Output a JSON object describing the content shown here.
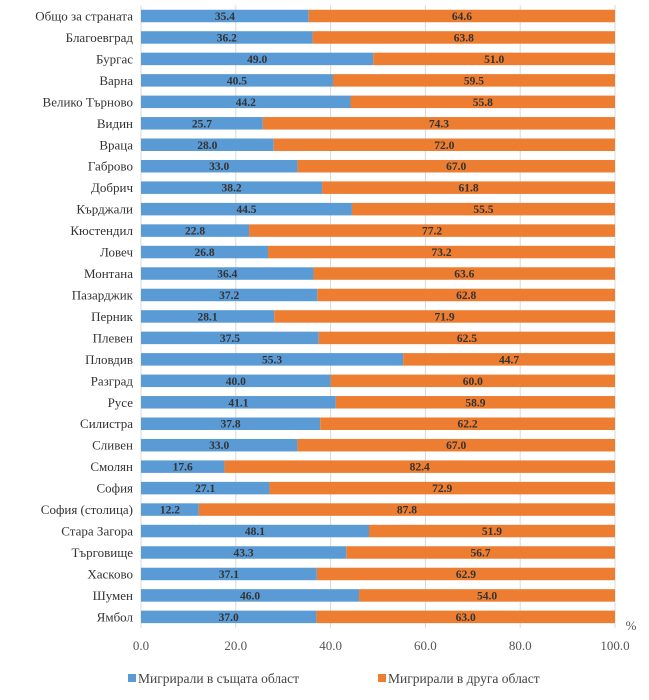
{
  "chart_data": {
    "type": "bar",
    "orientation": "horizontal",
    "stacked": true,
    "title": "",
    "xlabel": "%",
    "ylabel": "",
    "xlim": [
      0,
      100
    ],
    "xticks": [
      "0.0",
      "20.0",
      "40.0",
      "60.0",
      "80.0",
      "100.0"
    ],
    "grid": true,
    "legend_position": "bottom",
    "categories": [
      "Общо за страната",
      "Благоевград",
      "Бургас",
      "Варна",
      "Велико Търново",
      "Видин",
      "Враца",
      "Габрово",
      "Добрич",
      "Кърджали",
      "Кюстендил",
      "Ловеч",
      "Монтана",
      "Пазарджик",
      "Перник",
      "Плевен",
      "Пловдив",
      "Разград",
      "Русе",
      "Силистра",
      "Сливен",
      "Смолян",
      "София",
      "София (столица)",
      "Стара Загора",
      "Търговище",
      "Хасково",
      "Шумен",
      "Ямбол"
    ],
    "series": [
      {
        "name": "Мигрирали в същата област",
        "color": "#5b9bd5",
        "values": [
          35.4,
          36.2,
          49.0,
          40.5,
          44.2,
          25.7,
          28.0,
          33.0,
          38.2,
          44.5,
          22.8,
          26.8,
          36.4,
          37.2,
          28.1,
          37.5,
          55.3,
          40.0,
          41.1,
          37.8,
          33.0,
          17.6,
          27.1,
          12.2,
          48.1,
          43.3,
          37.1,
          46.0,
          37.0
        ]
      },
      {
        "name": "Мигрирали в друга област",
        "color": "#ed7d31",
        "values": [
          64.6,
          63.8,
          51.0,
          59.5,
          55.8,
          74.3,
          72.0,
          67.0,
          61.8,
          55.5,
          77.2,
          73.2,
          63.6,
          62.8,
          71.9,
          62.5,
          44.7,
          60.0,
          58.9,
          62.2,
          67.0,
          82.4,
          72.9,
          87.8,
          51.9,
          56.7,
          62.9,
          54.0,
          63.0
        ]
      }
    ]
  }
}
